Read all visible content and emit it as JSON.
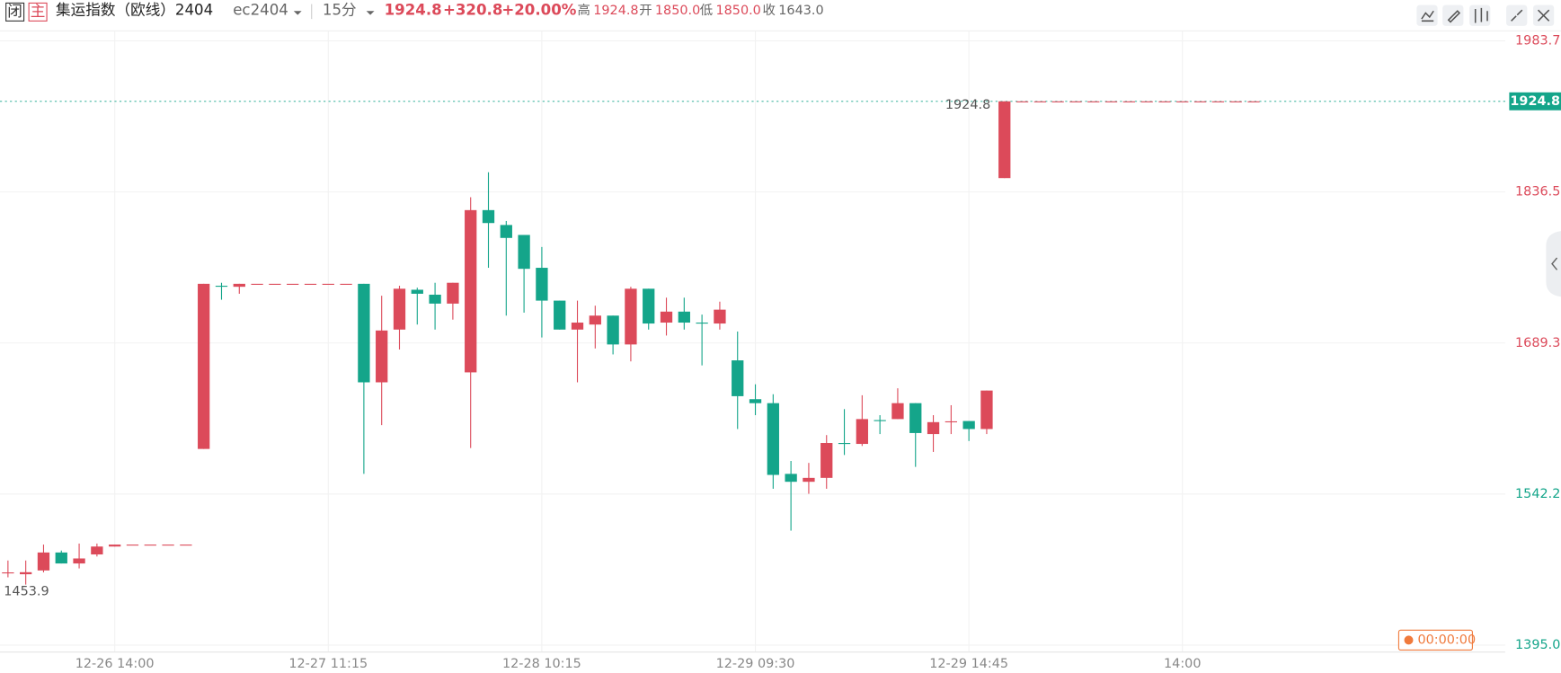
{
  "header": {
    "tag_close": "闭",
    "tag_main": "主",
    "title": "集运指数（欧线）2404",
    "code": "ec2404",
    "period": "15分",
    "last": "1924.8",
    "change": "+320.8",
    "change_pct": "+20.00%",
    "high_label": "高",
    "high": "1924.8",
    "open_label": "开",
    "open": "1850.0",
    "low_label": "低",
    "low": "1850.0",
    "close_label": "收",
    "close": "1643.0"
  },
  "chart_data": {
    "type": "candlestick",
    "up_color": "#dc4a5a",
    "down_color": "#14a58a",
    "grid": true,
    "categories": [
      null,
      null,
      null,
      null,
      null,
      null,
      "12-26 14:00",
      null,
      null,
      null,
      null,
      null,
      null,
      null,
      null,
      null,
      null,
      null,
      "12-27 11:15",
      null,
      null,
      null,
      null,
      null,
      null,
      null,
      null,
      null,
      null,
      null,
      "12-28 10:15",
      null,
      null,
      null,
      null,
      null,
      null,
      null,
      null,
      null,
      null,
      null,
      "12-29 09:30",
      null,
      null,
      null,
      null,
      null,
      null,
      null,
      null,
      null,
      null,
      null,
      "12-29 14:45",
      null,
      null,
      null,
      null,
      null,
      null,
      null,
      null,
      null,
      null,
      null,
      "14:00",
      null,
      null,
      null,
      null
    ],
    "open": [
      1465.8,
      1464.0,
      1467.7,
      1485.2,
      1474.5,
      1483.3,
      1491.0,
      1492.9,
      1492.9,
      1492.9,
      1492.9,
      1586.1,
      1745.1,
      1744.1,
      1747.0,
      1747.0,
      1747.0,
      1747.0,
      1747.0,
      1747.0,
      1747.0,
      1651.0,
      1702.4,
      1741.2,
      1736.4,
      1727.7,
      1660.7,
      1818.8,
      1804.3,
      1794.6,
      1762.6,
      1730.6,
      1702.4,
      1707.3,
      1716.0,
      1687.9,
      1742.2,
      1709.2,
      1719.9,
      1709.2,
      1708.3,
      1672.4,
      1634.6,
      1630.7,
      1561.8,
      1554.1,
      1557.9,
      1591.9,
      1591.0,
      1614.2,
      1615.2,
      1630.7,
      1600.6,
      1612.2,
      1613.3,
      1605.5,
      1850.0,
      1924.8,
      1924.8,
      1924.8,
      1924.8,
      1924.8,
      1924.8,
      1924.8,
      1924.8,
      1924.8,
      1924.8,
      1924.8,
      1924.8,
      1924.8,
      1924.8
    ],
    "high": [
      1477.4,
      1477.4,
      1492.9,
      1487.1,
      1493.9,
      1493.9,
      1492.9,
      1492.9,
      1492.9,
      1492.9,
      1492.9,
      1747.0,
      1748.0,
      1747.0,
      1747.0,
      1747.0,
      1747.0,
      1747.0,
      1747.0,
      1747.0,
      1747.0,
      1735.4,
      1745.1,
      1743.2,
      1748.0,
      1748.0,
      1831.4,
      1855.7,
      1808.2,
      1794.6,
      1782.9,
      1730.6,
      1730.6,
      1725.7,
      1716.0,
      1744.1,
      1742.2,
      1733.5,
      1733.5,
      1717.0,
      1729.6,
      1700.5,
      1649.1,
      1639.4,
      1574.4,
      1572.5,
      1599.6,
      1624.9,
      1638.4,
      1619.0,
      1645.2,
      1630.7,
      1619.0,
      1628.7,
      1613.3,
      1643.0,
      1924.8,
      1924.8,
      1924.8,
      1924.8,
      1924.8,
      1924.8,
      1924.8,
      1924.8,
      1924.8,
      1924.8,
      1924.8,
      1924.8,
      1924.8,
      1924.8,
      1924.8
    ],
    "low": [
      1461.0,
      1453.9,
      1465.8,
      1474.5,
      1469.7,
      1481.3,
      1491.0,
      1492.9,
      1492.9,
      1492.9,
      1492.9,
      1586.1,
      1731.5,
      1737.3,
      1747.0,
      1747.0,
      1747.0,
      1747.0,
      1747.0,
      1747.0,
      1561.8,
      1609.3,
      1683.0,
      1707.3,
      1702.4,
      1712.1,
      1587.0,
      1762.6,
      1716.0,
      1718.9,
      1694.7,
      1702.4,
      1651.0,
      1684.0,
      1678.2,
      1671.4,
      1702.4,
      1696.6,
      1702.4,
      1667.5,
      1702.4,
      1605.5,
      1619.0,
      1547.3,
      1506.5,
      1542.4,
      1547.3,
      1580.2,
      1589.0,
      1600.6,
      1615.2,
      1568.6,
      1583.2,
      1600.6,
      1593.8,
      1600.6,
      1850.0,
      1924.8,
      1924.8,
      1924.8,
      1924.8,
      1924.8,
      1924.8,
      1924.8,
      1924.8,
      1924.8,
      1924.8,
      1924.8,
      1924.8,
      1924.8,
      1924.8
    ],
    "close": [
      1465.8,
      1466.0,
      1485.2,
      1474.5,
      1479.4,
      1491.0,
      1492.9,
      1492.9,
      1492.9,
      1492.9,
      1492.9,
      1747.0,
      1744.9,
      1747.0,
      1747.0,
      1747.0,
      1747.0,
      1747.0,
      1747.0,
      1747.0,
      1651.0,
      1701.5,
      1742.2,
      1737.3,
      1727.7,
      1748.0,
      1818.8,
      1806.2,
      1791.7,
      1761.6,
      1730.6,
      1702.4,
      1709.2,
      1716.0,
      1687.9,
      1742.2,
      1708.3,
      1719.9,
      1709.2,
      1709.0,
      1721.8,
      1637.5,
      1630.7,
      1560.8,
      1554.1,
      1557.9,
      1591.9,
      1591.7,
      1615.2,
      1613.3,
      1630.7,
      1601.6,
      1612.2,
      1613.0,
      1605.5,
      1643.0,
      1924.8,
      1924.8,
      1924.8,
      1924.8,
      1924.8,
      1924.8,
      1924.8,
      1924.8,
      1924.8,
      1924.8,
      1924.8,
      1924.8,
      1924.8,
      1924.8,
      1924.8
    ],
    "ylim": [
      1395.0,
      1983.7
    ],
    "yticks": [
      {
        "value": 1395.0,
        "label": "1395.0"
      },
      1542.2,
      1689.3,
      1836.5,
      1983.7
    ],
    "max_label": {
      "value": 1924.8,
      "label": "1924.8"
    },
    "min_label": {
      "value": 1453.9,
      "label": "1453.9"
    },
    "last_price": {
      "value": 1924.8,
      "label": "1924.8"
    },
    "countdown": "00:00:00"
  }
}
